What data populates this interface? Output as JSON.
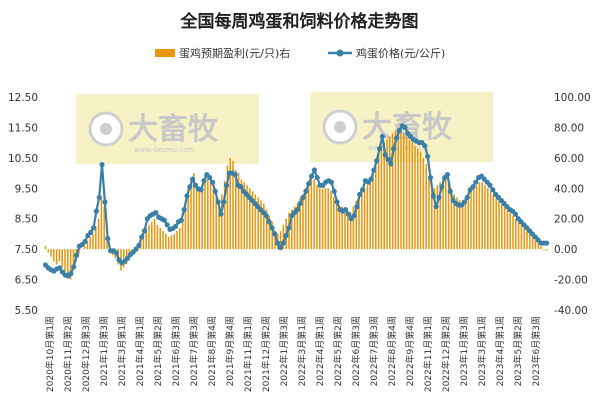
{
  "chart_data": {
    "type": "bar+line",
    "title": "全国每周鸡蛋和饲料价格走势图",
    "legend": [
      {
        "name": "蛋鸡预期盈利(元/只)右",
        "color": "#E8960E",
        "marker": "bar"
      },
      {
        "name": "鸡蛋价格(元/公斤)",
        "color": "#3A7FA6",
        "marker": "line"
      }
    ],
    "left_axis": {
      "min": 5.5,
      "max": 12.5,
      "ticks": [
        "5.50",
        "6.50",
        "7.50",
        "8.50",
        "9.50",
        "10.50",
        "11.50",
        "12.50"
      ]
    },
    "right_axis": {
      "min": -40,
      "max": 100,
      "ticks": [
        "-40.00",
        "-20.00",
        "0.00",
        "20.00",
        "40.00",
        "60.00",
        "80.00",
        "100.00"
      ]
    },
    "x_labels": [
      "2020年10月第1周",
      "2020年11月第2周",
      "2020年12月第3周",
      "2021年1月第3周",
      "2021年3月第1周",
      "2021年4月第1周",
      "2021年5月第2周",
      "2021年6月第3周",
      "2021年7月第3周",
      "2021年8月第4周",
      "2021年9月第4周",
      "2021年11月第1周",
      "2021年12月第2周",
      "2022年1月第3周",
      "2022年3月第1周",
      "2022年4月第1周",
      "2022年5月第2周",
      "2022年6月第3周",
      "2022年7月第3周",
      "2022年8月第4周",
      "2022年9月第4周",
      "2022年11月第1周",
      "2022年12月第2周",
      "2023年1月第3周",
      "2023年3月第1周",
      "2023年4月第1周",
      "2023年5月第2周",
      "2023年6月第3周"
    ],
    "watermark": {
      "text": "大畜牧",
      "sub": "www.dxumu.com"
    },
    "series": [
      {
        "name": "鸡蛋价格(元/公斤)",
        "axis": "left",
        "values": [
          6.98,
          6.88,
          6.82,
          6.78,
          6.85,
          6.88,
          6.75,
          6.65,
          6.62,
          6.7,
          6.92,
          7.3,
          7.6,
          7.65,
          7.75,
          7.95,
          8.05,
          8.2,
          8.75,
          9.2,
          10.28,
          9.05,
          7.85,
          7.45,
          7.45,
          7.38,
          7.15,
          7.05,
          7.1,
          7.2,
          7.32,
          7.4,
          7.5,
          7.62,
          7.9,
          8.1,
          8.5,
          8.6,
          8.65,
          8.7,
          8.55,
          8.5,
          8.45,
          8.3,
          8.15,
          8.18,
          8.25,
          8.4,
          8.45,
          8.8,
          9.25,
          9.55,
          9.8,
          9.6,
          9.48,
          9.45,
          9.75,
          9.95,
          9.85,
          9.7,
          9.4,
          9.05,
          8.65,
          9.05,
          9.6,
          10.0,
          10.0,
          9.95,
          9.6,
          9.55,
          9.4,
          9.3,
          9.2,
          9.1,
          9.0,
          8.9,
          8.8,
          8.7,
          8.6,
          8.4,
          8.2,
          8.0,
          7.7,
          7.55,
          7.7,
          7.95,
          8.2,
          8.6,
          8.7,
          8.8,
          9.0,
          9.2,
          9.4,
          9.65,
          9.9,
          10.1,
          9.85,
          9.6,
          9.6,
          9.7,
          9.75,
          9.7,
          9.4,
          9.05,
          8.8,
          8.75,
          8.8,
          8.65,
          8.5,
          8.6,
          8.9,
          9.3,
          9.45,
          9.75,
          9.7,
          9.8,
          10.1,
          10.4,
          10.8,
          11.2,
          10.6,
          10.45,
          10.3,
          10.8,
          11.15,
          11.4,
          11.55,
          11.5,
          11.3,
          11.2,
          11.1,
          11.05,
          11.0,
          11.0,
          10.9,
          10.55,
          9.85,
          9.25,
          8.9,
          9.2,
          9.55,
          9.85,
          9.95,
          9.4,
          9.1,
          9.0,
          8.95,
          8.95,
          9.05,
          9.2,
          9.45,
          9.55,
          9.7,
          9.85,
          9.9,
          9.8,
          9.7,
          9.6,
          9.45,
          9.3,
          9.2,
          9.1,
          9.0,
          8.9,
          8.8,
          8.75,
          8.65,
          8.5,
          8.4,
          8.3,
          8.2,
          8.1,
          8.0,
          7.9,
          7.8,
          7.7,
          7.7,
          7.7
        ]
      },
      {
        "name": "蛋鸡预期盈利(元/只)右",
        "axis": "right",
        "values": [
          2,
          -2,
          -5,
          -8,
          -10,
          -8,
          -12,
          -15,
          -18,
          -20,
          -14,
          -8,
          -3,
          0,
          2,
          5,
          8,
          10,
          15,
          20,
          35,
          28,
          5,
          -2,
          -4,
          -6,
          -10,
          -14,
          -12,
          -10,
          -6,
          -4,
          -2,
          0,
          5,
          10,
          14,
          16,
          18,
          20,
          16,
          14,
          12,
          10,
          8,
          9,
          10,
          12,
          14,
          18,
          30,
          40,
          45,
          50,
          42,
          38,
          40,
          48,
          46,
          44,
          40,
          34,
          28,
          36,
          45,
          55,
          60,
          58,
          52,
          50,
          46,
          44,
          42,
          40,
          38,
          36,
          34,
          32,
          30,
          26,
          22,
          18,
          12,
          10,
          12,
          16,
          20,
          24,
          26,
          28,
          30,
          34,
          36,
          40,
          44,
          48,
          46,
          42,
          40,
          40,
          40,
          40,
          38,
          34,
          30,
          28,
          28,
          26,
          24,
          24,
          28,
          32,
          34,
          38,
          40,
          42,
          44,
          50,
          56,
          62,
          68,
          70,
          72,
          74,
          76,
          78,
          80,
          78,
          76,
          74,
          72,
          70,
          68,
          66,
          64,
          60,
          56,
          48,
          42,
          40,
          42,
          44,
          46,
          48,
          44,
          40,
          36,
          34,
          32,
          32,
          34,
          36,
          38,
          40,
          42,
          44,
          44,
          42,
          40,
          38,
          36,
          34,
          32,
          30,
          28,
          26,
          24,
          22,
          20,
          18,
          16,
          14,
          12,
          10,
          8,
          6,
          4,
          2,
          0,
          -1
        ]
      }
    ]
  }
}
